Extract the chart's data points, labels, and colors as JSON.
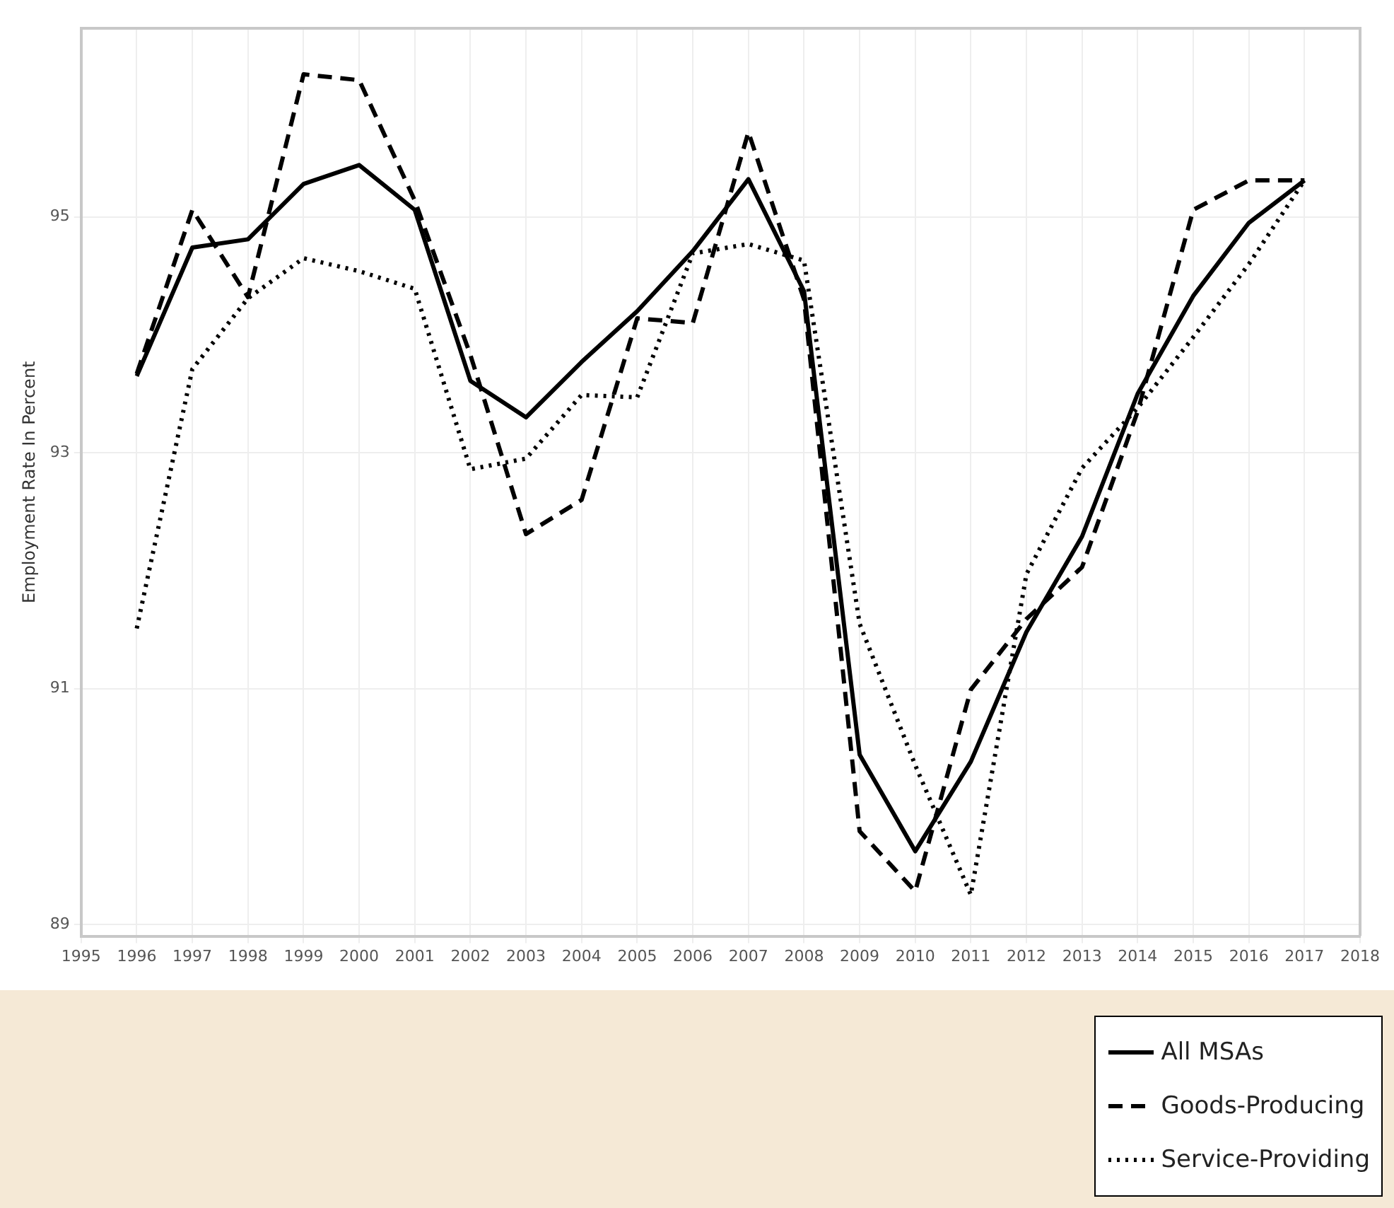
{
  "chart_data": {
    "type": "line",
    "ylabel": "Employment Rate In Percent",
    "x": [
      1996,
      1997,
      1998,
      1999,
      2000,
      2001,
      2002,
      2003,
      2004,
      2005,
      2006,
      2007,
      2008,
      2009,
      2010,
      2011,
      2012,
      2013,
      2014,
      2015,
      2016,
      2017
    ],
    "series": [
      {
        "name": "All MSAs",
        "color": "#000000",
        "line_style": "solid",
        "values": [
          93.65,
          94.74,
          94.81,
          95.28,
          95.44,
          95.06,
          93.61,
          93.3,
          93.77,
          94.2,
          94.71,
          95.32,
          94.37,
          90.44,
          89.62,
          90.38,
          91.48,
          92.29,
          93.5,
          94.33,
          94.95,
          95.31
        ]
      },
      {
        "name": "Goods-Producing",
        "color": "#000000",
        "line_style": "dashed",
        "values": [
          93.67,
          95.06,
          94.32,
          96.21,
          96.16,
          95.14,
          93.83,
          92.31,
          92.6,
          94.14,
          94.1,
          95.72,
          94.3,
          89.79,
          89.28,
          90.99,
          91.59,
          92.03,
          93.35,
          95.06,
          95.31,
          95.31
        ]
      },
      {
        "name": "Service-Providing",
        "color": "#000000",
        "line_style": "dotted",
        "values": [
          91.51,
          93.71,
          94.31,
          94.65,
          94.54,
          94.39,
          92.86,
          92.95,
          93.49,
          93.47,
          94.69,
          94.77,
          94.63,
          91.55,
          90.35,
          89.25,
          91.97,
          92.87,
          93.38,
          93.98,
          94.6,
          95.31
        ]
      }
    ],
    "xlim": [
      1995,
      2018
    ],
    "xticks": [
      1995,
      1996,
      1997,
      1998,
      1999,
      2000,
      2001,
      2002,
      2003,
      2004,
      2005,
      2006,
      2007,
      2008,
      2009,
      2010,
      2011,
      2012,
      2013,
      2014,
      2015,
      2016,
      2017,
      2018
    ],
    "ylim": [
      88.9,
      96.6
    ],
    "yticks": [
      89,
      91,
      93,
      95
    ],
    "grid": true,
    "legend": "bottom right",
    "marker": "none"
  }
}
